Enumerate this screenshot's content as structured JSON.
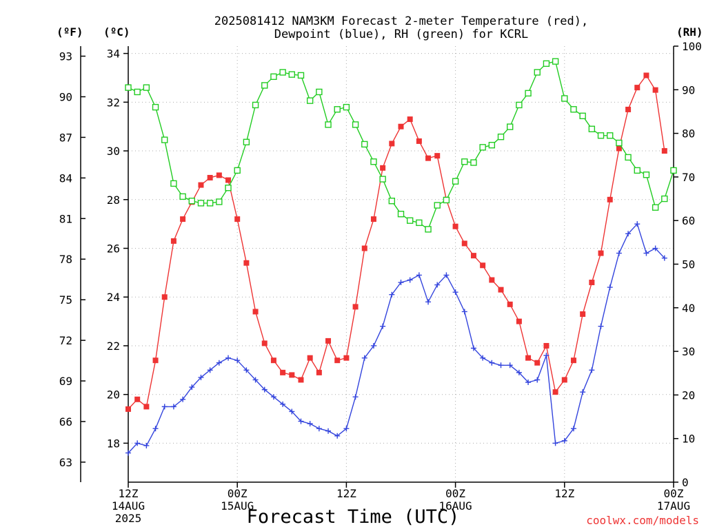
{
  "colors": {
    "temperature": "#ee3333",
    "dewpoint": "#3344dd",
    "rh": "#22cc22",
    "grid": "#aaaaaa",
    "credit": "#ee3333"
  },
  "chart_data": {
    "type": "line",
    "title_line1": "2025081412 NAM3KM Forecast 2-meter Temperature (red),",
    "title_line2": "Dewpoint (blue), RH (green) for KCRL",
    "xlabel": "Forecast Time (UTC)",
    "credit": "coolwx.com/models",
    "left_outer_unit": "(ºF)",
    "left_inner_unit": "(ºC)",
    "right_unit": "(RH)",
    "x_range_hours": [
      0,
      60
    ],
    "x_ticks": [
      {
        "hour": 0,
        "line1": "12Z",
        "line2": "14AUG",
        "line3": "2025"
      },
      {
        "hour": 12,
        "line1": "00Z",
        "line2": "15AUG",
        "line3": ""
      },
      {
        "hour": 24,
        "line1": "12Z",
        "line2": "",
        "line3": ""
      },
      {
        "hour": 36,
        "line1": "00Z",
        "line2": "16AUG",
        "line3": ""
      },
      {
        "hour": 48,
        "line1": "12Z",
        "line2": "",
        "line3": ""
      },
      {
        "hour": 60,
        "line1": "00Z",
        "line2": "17AUG",
        "line3": ""
      }
    ],
    "celsius_axis": {
      "ylim": [
        16.4,
        34.3
      ],
      "ticks": [
        18,
        20,
        22,
        24,
        26,
        28,
        30,
        32,
        34
      ]
    },
    "fahrenheit_ticks": [
      63,
      66,
      69,
      72,
      75,
      78,
      81,
      84,
      87,
      90,
      93
    ],
    "rh_axis": {
      "ylim": [
        0,
        100
      ],
      "ticks": [
        0,
        10,
        20,
        30,
        40,
        50,
        60,
        70,
        80,
        90,
        100
      ]
    },
    "grid": true,
    "series": [
      {
        "name": "Temperature",
        "axis": "celsius",
        "marker": "square",
        "x": [
          0,
          1,
          2,
          3,
          4,
          5,
          6,
          7,
          8,
          9,
          10,
          11,
          12,
          13,
          14,
          15,
          16,
          17,
          18,
          19,
          20,
          21,
          22,
          23,
          24,
          25,
          26,
          27,
          28,
          29,
          30,
          31,
          32,
          33,
          34,
          35,
          36,
          37,
          38,
          39,
          40,
          41,
          42,
          43,
          44,
          45,
          46,
          47,
          48,
          49,
          50,
          51,
          52,
          53,
          54,
          55,
          56,
          57,
          58,
          59,
          60
        ],
        "values": [
          19.4,
          19.8,
          19.5,
          21.4,
          24.0,
          26.3,
          27.2,
          27.9,
          28.6,
          28.9,
          29.0,
          28.8,
          27.2,
          25.4,
          23.4,
          22.1,
          21.4,
          20.9,
          20.8,
          20.6,
          21.5,
          20.9,
          22.2,
          21.4,
          21.5,
          23.6,
          26.0,
          27.2,
          29.3,
          30.3,
          31.0,
          31.3,
          30.4,
          29.7,
          29.8,
          28.0,
          26.9,
          26.2,
          25.7,
          25.3,
          24.7,
          24.3,
          23.7,
          23.0,
          21.5,
          21.3,
          22.0,
          20.1,
          20.6,
          21.4,
          23.3,
          24.6,
          25.8,
          28.0,
          30.1,
          31.7,
          32.6,
          33.1,
          32.5,
          30.0,
          null
        ]
      },
      {
        "name": "Dewpoint",
        "axis": "celsius",
        "marker": "plus",
        "x": [
          0,
          1,
          2,
          3,
          4,
          5,
          6,
          7,
          8,
          9,
          10,
          11,
          12,
          13,
          14,
          15,
          16,
          17,
          18,
          19,
          20,
          21,
          22,
          23,
          24,
          25,
          26,
          27,
          28,
          29,
          30,
          31,
          32,
          33,
          34,
          35,
          36,
          37,
          38,
          39,
          40,
          41,
          42,
          43,
          44,
          45,
          46,
          47,
          48,
          49,
          50,
          51,
          52,
          53,
          54,
          55,
          56,
          57,
          58,
          59,
          60
        ],
        "values": [
          17.6,
          18.0,
          17.9,
          18.6,
          19.5,
          19.5,
          19.8,
          20.3,
          20.7,
          21.0,
          21.3,
          21.5,
          21.4,
          21.0,
          20.6,
          20.2,
          19.9,
          19.6,
          19.3,
          18.9,
          18.8,
          18.6,
          18.5,
          18.3,
          18.6,
          19.9,
          21.5,
          22.0,
          22.8,
          24.1,
          24.6,
          24.7,
          24.9,
          23.8,
          24.5,
          24.9,
          24.2,
          23.4,
          21.9,
          21.5,
          21.3,
          21.2,
          21.2,
          20.9,
          20.5,
          20.6,
          21.6,
          18.0,
          18.1,
          18.6,
          20.1,
          21.0,
          22.8,
          24.4,
          25.8,
          26.6,
          27.0,
          25.8,
          26.0,
          25.6,
          null
        ]
      },
      {
        "name": "RH",
        "axis": "rh",
        "marker": "open-square",
        "x": [
          0,
          1,
          2,
          3,
          4,
          5,
          6,
          7,
          8,
          9,
          10,
          11,
          12,
          13,
          14,
          15,
          16,
          17,
          18,
          19,
          20,
          21,
          22,
          23,
          24,
          25,
          26,
          27,
          28,
          29,
          30,
          31,
          32,
          33,
          34,
          35,
          36,
          37,
          38,
          39,
          40,
          41,
          42,
          43,
          44,
          45,
          46,
          47,
          48,
          49,
          50,
          51,
          52,
          53,
          54,
          55,
          56,
          57,
          58,
          59,
          60
        ],
        "values": [
          90.5,
          89.5,
          90.5,
          86.0,
          78.5,
          68.5,
          65.5,
          64.5,
          64.0,
          64.0,
          64.3,
          67.5,
          71.5,
          78.0,
          86.5,
          91.0,
          93.0,
          94.0,
          93.5,
          93.3,
          87.5,
          89.5,
          82.0,
          85.5,
          86.0,
          82.0,
          77.5,
          73.5,
          69.5,
          64.5,
          61.5,
          60.0,
          59.5,
          58.0,
          63.5,
          64.7,
          69.0,
          73.5,
          73.3,
          76.8,
          77.3,
          79.2,
          81.5,
          86.5,
          89.2,
          94.0,
          96.0,
          96.5,
          88.0,
          85.5,
          84.0,
          81.0,
          79.5,
          79.5,
          77.8,
          74.5,
          71.5,
          70.5,
          63.0,
          65.0,
          71.5
        ]
      }
    ]
  }
}
